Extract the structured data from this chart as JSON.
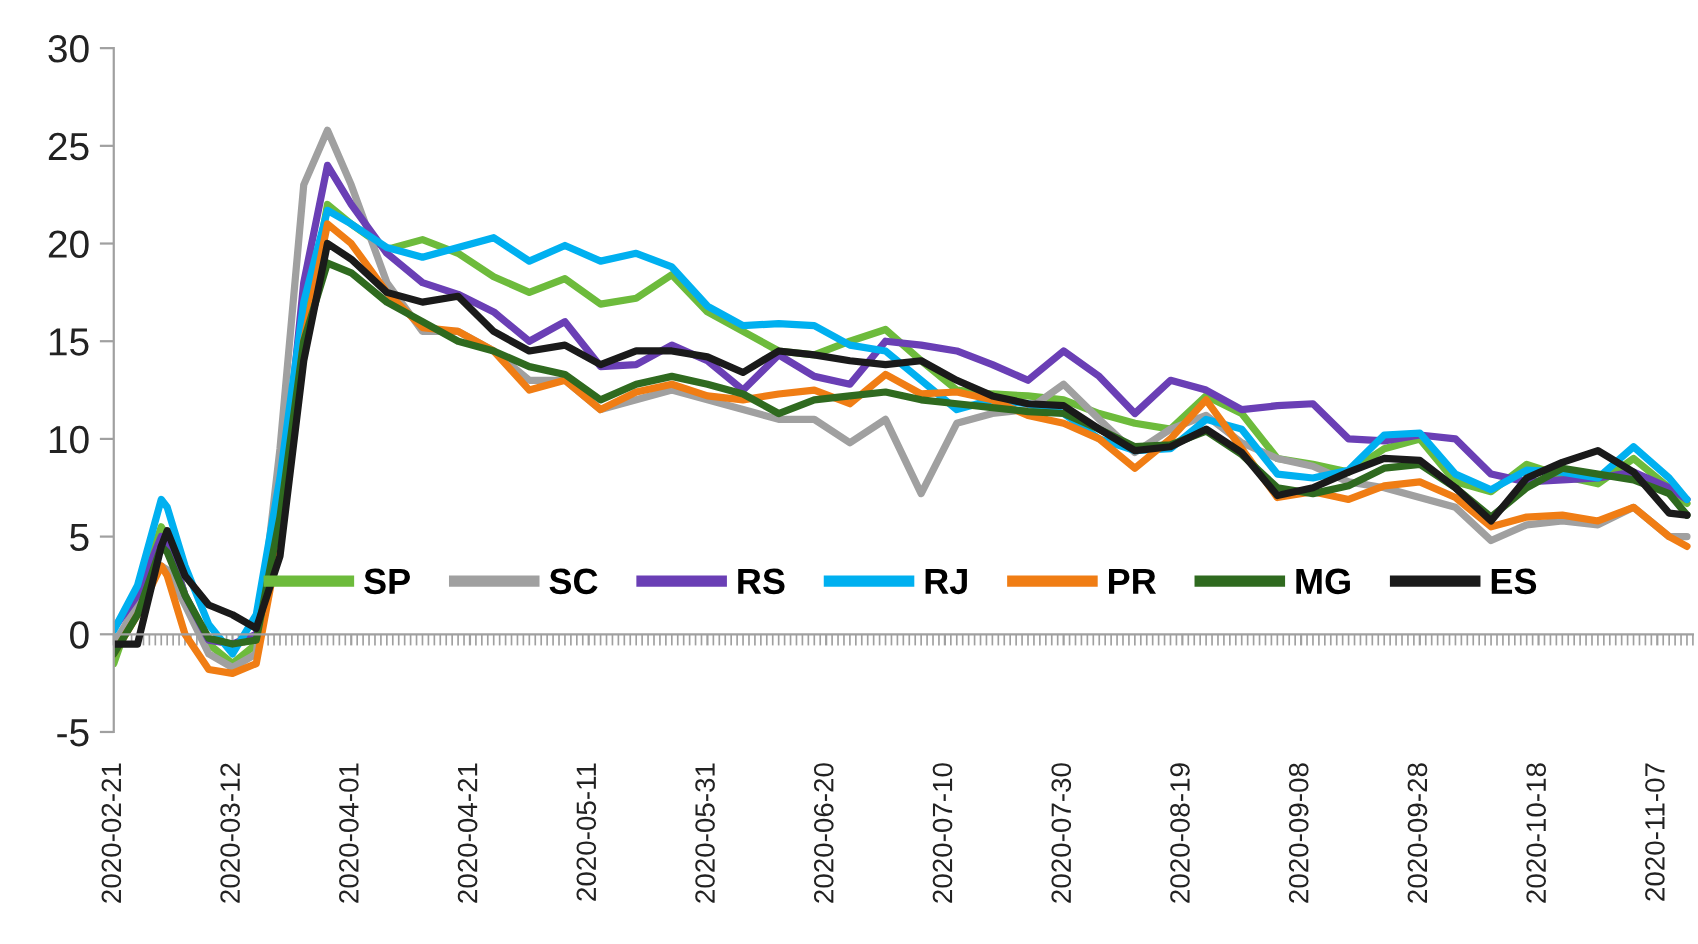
{
  "chart_data": {
    "type": "line",
    "x": [
      "2020-02-21",
      "2020-02-25",
      "2020-02-29",
      "2020-03-01",
      "2020-03-04",
      "2020-03-08",
      "2020-03-12",
      "2020-03-16",
      "2020-03-20",
      "2020-03-24",
      "2020-03-28",
      "2020-04-01",
      "2020-04-07",
      "2020-04-13",
      "2020-04-19",
      "2020-04-25",
      "2020-05-01",
      "2020-05-07",
      "2020-05-13",
      "2020-05-19",
      "2020-05-25",
      "2020-05-31",
      "2020-06-06",
      "2020-06-12",
      "2020-06-18",
      "2020-06-24",
      "2020-06-30",
      "2020-07-06",
      "2020-07-12",
      "2020-07-18",
      "2020-07-24",
      "2020-07-30",
      "2020-08-05",
      "2020-08-11",
      "2020-08-17",
      "2020-08-23",
      "2020-08-29",
      "2020-09-04",
      "2020-09-10",
      "2020-09-16",
      "2020-09-22",
      "2020-09-28",
      "2020-10-04",
      "2020-10-10",
      "2020-10-16",
      "2020-10-22",
      "2020-10-28",
      "2020-11-03",
      "2020-11-09",
      "2020-11-12"
    ],
    "series": [
      {
        "name": "SP",
        "color": "#6dbb3c",
        "values": [
          -1.5,
          2,
          5.5,
          5,
          2,
          -0.5,
          -1.5,
          -0.5,
          6,
          15,
          22,
          21,
          19.7,
          20.2,
          19.5,
          18.3,
          17.5,
          18.2,
          16.9,
          17.2,
          18.4,
          16.5,
          15.5,
          14.5,
          14.3,
          15,
          15.6,
          14,
          12.5,
          12.3,
          12.2,
          12,
          11.3,
          10.8,
          10.5,
          12.2,
          11.3,
          9,
          8.7,
          8.3,
          9.5,
          10,
          7.8,
          7.3,
          8.7,
          8.1,
          7.7,
          9,
          7.5,
          6.7
        ]
      },
      {
        "name": "SC",
        "color": "#a0a0a0",
        "values": [
          -0.5,
          1.5,
          3.5,
          3.3,
          1.5,
          -1,
          -1.7,
          -1,
          9.5,
          23,
          25.8,
          23,
          18,
          15.5,
          15.5,
          14.5,
          13,
          13,
          11.5,
          12,
          12.5,
          12,
          11.5,
          11,
          11,
          9.8,
          11,
          7.2,
          10.8,
          11.3,
          11.5,
          12.8,
          11,
          9.3,
          10.5,
          11.2,
          9.8,
          9,
          8.6,
          7.8,
          7.5,
          7,
          6.5,
          4.8,
          5.6,
          5.8,
          5.6,
          6.5,
          5,
          5
        ]
      },
      {
        "name": "RS",
        "color": "#6a3fb5",
        "values": [
          0.3,
          2,
          5,
          4.8,
          2,
          -0.3,
          -0.5,
          0,
          6,
          18,
          24,
          22,
          19.5,
          18,
          17.4,
          16.5,
          15,
          16,
          13.7,
          13.8,
          14.8,
          14,
          12.5,
          14.3,
          13.2,
          12.8,
          15,
          14.8,
          14.5,
          13.8,
          13,
          14.5,
          13.2,
          11.3,
          13,
          12.5,
          11.5,
          11.7,
          11.8,
          10,
          9.9,
          10.2,
          10,
          8.2,
          7.8,
          7.9,
          8,
          8.3,
          7.5,
          6.9
        ]
      },
      {
        "name": "RJ",
        "color": "#00b0f0",
        "values": [
          0.2,
          2.5,
          6.9,
          6.5,
          3.5,
          0.5,
          -1,
          1,
          8,
          17,
          21.7,
          21,
          19.8,
          19.3,
          19.8,
          20.3,
          19.1,
          19.9,
          19.1,
          19.5,
          18.8,
          16.8,
          15.8,
          15.9,
          15.8,
          14.8,
          14.5,
          13,
          11.5,
          12,
          11.8,
          11.3,
          10,
          9.4,
          9.5,
          11,
          10.5,
          8.2,
          8,
          8.4,
          10.2,
          10.3,
          8.2,
          7.4,
          8.4,
          8.3,
          8,
          9.6,
          8,
          6.9
        ]
      },
      {
        "name": "PR",
        "color": "#f07d14",
        "values": [
          -1,
          1,
          3.5,
          3,
          0,
          -1.8,
          -2,
          -1.5,
          5,
          15,
          21,
          20,
          17.5,
          15.7,
          15.5,
          14.5,
          12.5,
          13,
          11.5,
          12.4,
          12.8,
          12.2,
          12,
          12.3,
          12.5,
          11.8,
          13.3,
          12.3,
          12.4,
          12,
          11.2,
          10.8,
          10,
          8.5,
          10,
          12,
          9.5,
          7,
          7.3,
          6.9,
          7.6,
          7.8,
          7,
          5.5,
          6,
          6.1,
          5.8,
          6.5,
          5,
          4.5
        ]
      },
      {
        "name": "MG",
        "color": "#2f6a1f",
        "values": [
          -1,
          1,
          4.5,
          4.2,
          2,
          -0.2,
          -0.5,
          -0.3,
          6,
          15,
          19,
          18.5,
          17,
          16,
          15,
          14.5,
          13.7,
          13.3,
          12,
          12.8,
          13.2,
          12.8,
          12.3,
          11.3,
          12,
          12.2,
          12.4,
          12,
          11.8,
          11.6,
          11.4,
          11.3,
          10.5,
          9.6,
          9.7,
          10.4,
          9.2,
          7.5,
          7.2,
          7.6,
          8.5,
          8.7,
          7.5,
          6,
          7.5,
          8.5,
          8.2,
          7.9,
          7.2,
          6.1
        ]
      },
      {
        "name": "ES",
        "color": "#1a1a1a",
        "values": [
          -0.5,
          -0.5,
          4.5,
          5.3,
          3,
          1.5,
          1,
          0.3,
          4,
          14,
          20,
          19.2,
          17.5,
          17,
          17.3,
          15.5,
          14.5,
          14.8,
          13.8,
          14.5,
          14.5,
          14.2,
          13.4,
          14.5,
          14.3,
          14,
          13.8,
          14,
          13,
          12.2,
          11.8,
          11.7,
          10.5,
          9.4,
          9.6,
          10.5,
          9.3,
          7.1,
          7.5,
          8.3,
          9,
          8.9,
          7.5,
          5.8,
          8,
          8.8,
          9.4,
          8.3,
          6.2,
          6.1
        ]
      }
    ],
    "xlim": [
      "2020-02-21",
      "2020-11-13"
    ],
    "xticks": [
      "2020-02-21",
      "2020-03-12",
      "2020-04-01",
      "2020-04-21",
      "2020-05-11",
      "2020-05-31",
      "2020-06-20",
      "2020-07-10",
      "2020-07-30",
      "2020-08-19",
      "2020-09-08",
      "2020-09-28",
      "2020-10-18",
      "2020-11-07"
    ],
    "ylim": [
      -5,
      30
    ],
    "yticks": [
      -5,
      0,
      5,
      10,
      15,
      20,
      25,
      30
    ],
    "legend": "bottom",
    "marker": "none",
    "line_style": "solid"
  }
}
